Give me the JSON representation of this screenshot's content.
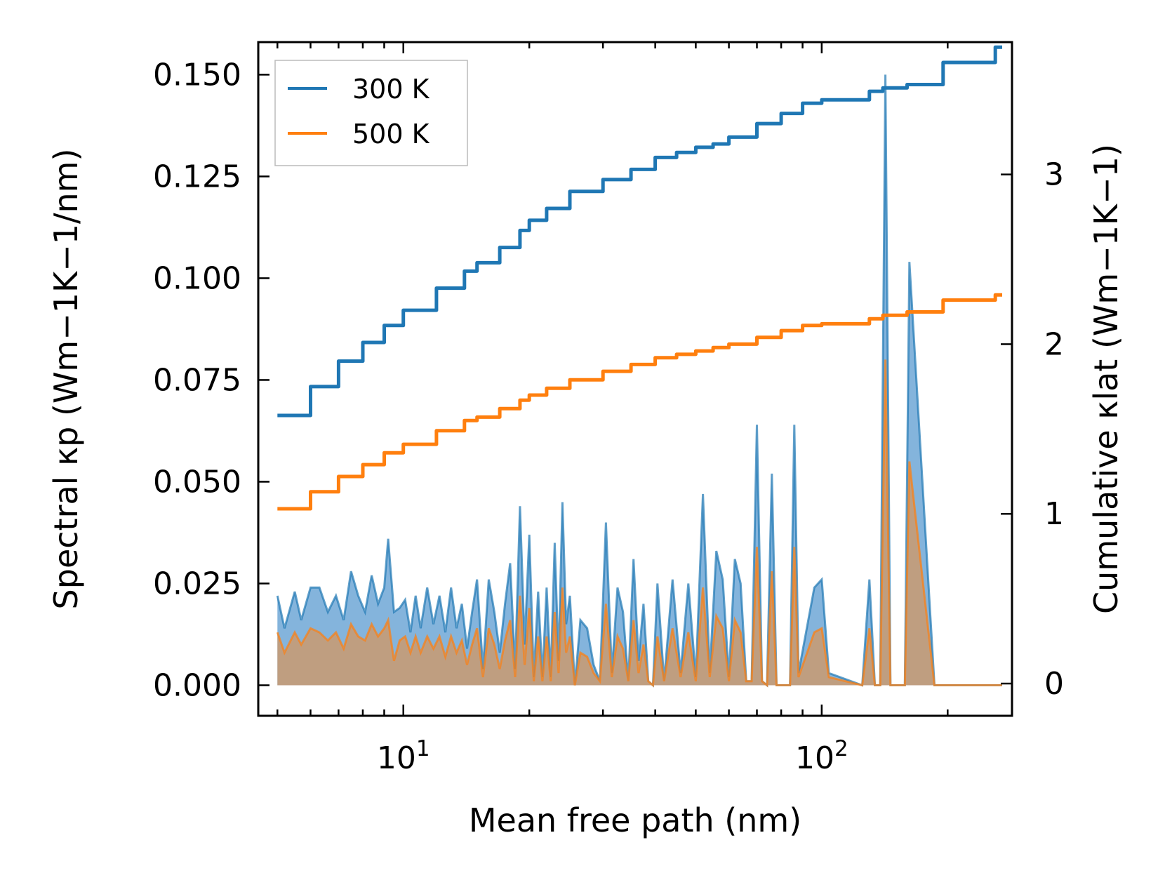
{
  "chart_data": {
    "type": "line",
    "xscale": "log",
    "xlabel": "Mean free path (nm)",
    "ylabel_left": "Spectral κp (Wm−1K−1/nm)",
    "ylabel_right": "Cumulative κlat (Wm−1K−1)",
    "xlim": [
      4.5,
      285
    ],
    "ylim_left": [
      -0.0075,
      0.158
    ],
    "ylim_right": [
      -0.19,
      3.78
    ],
    "x_ticks": [
      {
        "value": 10,
        "base": "10",
        "exp": "1"
      },
      {
        "value": 100,
        "base": "10",
        "exp": "2"
      }
    ],
    "y_ticks_left": [
      "0.000",
      "0.025",
      "0.050",
      "0.075",
      "0.100",
      "0.125",
      "0.150"
    ],
    "y_ticks_right": [
      "0",
      "1",
      "2",
      "3"
    ],
    "legend": [
      "300 K",
      "500 K"
    ],
    "colors": {
      "s300": "#1f77b4",
      "s500": "#ff7f0e",
      "fill300": "#5b9bd0",
      "fill500": "#c99a70"
    },
    "cumulative": [
      {
        "name": "300 K",
        "x": [
          5,
          6,
          7,
          8,
          9,
          10,
          12,
          14,
          15,
          17,
          19,
          20,
          22,
          25,
          30,
          35,
          40,
          45,
          50,
          55,
          60,
          70,
          80,
          90,
          100,
          130,
          140,
          160,
          190,
          195,
          250,
          260,
          270
        ],
        "y": [
          1.58,
          1.75,
          1.9,
          2.01,
          2.11,
          2.2,
          2.33,
          2.43,
          2.48,
          2.57,
          2.67,
          2.73,
          2.8,
          2.9,
          2.97,
          3.03,
          3.1,
          3.13,
          3.16,
          3.18,
          3.22,
          3.3,
          3.36,
          3.42,
          3.44,
          3.49,
          3.51,
          3.53,
          3.53,
          3.66,
          3.66,
          3.75,
          3.75
        ]
      },
      {
        "name": "500 K",
        "x": [
          5,
          6,
          7,
          8,
          9,
          10,
          12,
          14,
          15,
          17,
          19,
          20,
          22,
          25,
          30,
          35,
          40,
          45,
          50,
          55,
          60,
          70,
          80,
          90,
          100,
          130,
          140,
          160,
          190,
          195,
          250,
          260,
          270
        ],
        "y": [
          1.03,
          1.13,
          1.22,
          1.29,
          1.36,
          1.41,
          1.49,
          1.55,
          1.57,
          1.62,
          1.67,
          1.7,
          1.74,
          1.79,
          1.84,
          1.88,
          1.92,
          1.94,
          1.96,
          1.98,
          2.0,
          2.04,
          2.08,
          2.11,
          2.12,
          2.15,
          2.17,
          2.19,
          2.19,
          2.26,
          2.26,
          2.29,
          2.29
        ]
      }
    ],
    "spectral": [
      {
        "name": "300 K",
        "x": [
          5.0,
          5.2,
          5.5,
          5.7,
          6.0,
          6.3,
          6.6,
          6.9,
          7.2,
          7.5,
          7.8,
          8.1,
          8.4,
          8.7,
          9.0,
          9.2,
          9.5,
          9.8,
          10.1,
          10.4,
          10.7,
          11.0,
          11.4,
          11.8,
          12.2,
          12.6,
          13.0,
          13.4,
          13.8,
          14.2,
          14.6,
          15.0,
          15.5,
          16.0,
          16.5,
          17.0,
          17.5,
          18.0,
          18.5,
          19.0,
          19.5,
          20.0,
          20.5,
          21.0,
          21.5,
          22.0,
          22.5,
          23.0,
          23.5,
          24.0,
          24.5,
          25.0,
          25.7,
          26.5,
          27.5,
          28.5,
          29.5,
          30.5,
          31.5,
          32.5,
          33.5,
          34.5,
          35.5,
          36.5,
          37.5,
          38.5,
          39.5,
          40.5,
          42.0,
          44.0,
          46.0,
          48.0,
          50.0,
          52.0,
          54.0,
          56.0,
          58.0,
          60.0,
          62.0,
          64.0,
          66.0,
          68.0,
          70.0,
          72.0,
          74.0,
          76.0,
          78.0,
          80.0,
          84.0,
          86.0,
          88.0,
          96.0,
          100.0,
          104.0,
          125.0,
          130.0,
          134.0,
          138.0,
          142.0,
          146.0,
          154.0,
          158.0,
          162.0,
          186.0,
          190.0,
          194.0,
          252.0,
          256.0,
          260.0,
          270.0
        ],
        "y": [
          0.022,
          0.014,
          0.023,
          0.016,
          0.024,
          0.024,
          0.018,
          0.022,
          0.016,
          0.028,
          0.022,
          0.018,
          0.027,
          0.02,
          0.024,
          0.036,
          0.018,
          0.019,
          0.021,
          0.013,
          0.022,
          0.014,
          0.024,
          0.015,
          0.022,
          0.013,
          0.024,
          0.014,
          0.02,
          0.009,
          0.018,
          0.026,
          0.004,
          0.026,
          0.018,
          0.008,
          0.02,
          0.03,
          0.004,
          0.044,
          0.01,
          0.037,
          0.002,
          0.023,
          0.002,
          0.024,
          0.002,
          0.035,
          0.006,
          0.045,
          0.015,
          0.022,
          0.0,
          0.016,
          0.014,
          0.005,
          0.001,
          0.04,
          0.003,
          0.024,
          0.018,
          0.001,
          0.031,
          0.006,
          0.02,
          0.001,
          0.0,
          0.025,
          0.001,
          0.026,
          0.003,
          0.025,
          0.002,
          0.047,
          0.003,
          0.033,
          0.026,
          0.002,
          0.031,
          0.025,
          0.001,
          0.001,
          0.064,
          0.001,
          0.0,
          0.052,
          0.0,
          0.0,
          0.0,
          0.064,
          0.003,
          0.024,
          0.026,
          0.003,
          0.0,
          0.026,
          0.0,
          0.0,
          0.15,
          0.0,
          0.0,
          0.0,
          0.104,
          0.0,
          0.0,
          0.0,
          0.0,
          0.0,
          0.0,
          0.0
        ]
      },
      {
        "name": "500 K",
        "x": [
          5.0,
          5.2,
          5.5,
          5.7,
          6.0,
          6.3,
          6.6,
          6.9,
          7.2,
          7.5,
          7.8,
          8.1,
          8.4,
          8.7,
          9.0,
          9.2,
          9.5,
          9.8,
          10.1,
          10.4,
          10.7,
          11.0,
          11.4,
          11.8,
          12.2,
          12.6,
          13.0,
          13.4,
          13.8,
          14.2,
          14.6,
          15.0,
          15.5,
          16.0,
          16.5,
          17.0,
          17.5,
          18.0,
          18.5,
          19.0,
          19.5,
          20.0,
          20.5,
          21.0,
          21.5,
          22.0,
          22.5,
          23.0,
          23.5,
          24.0,
          24.5,
          25.0,
          25.7,
          26.5,
          27.5,
          28.5,
          29.5,
          30.5,
          31.5,
          32.5,
          33.5,
          34.5,
          35.5,
          36.5,
          37.5,
          38.5,
          39.5,
          40.5,
          42.0,
          44.0,
          46.0,
          48.0,
          50.0,
          52.0,
          54.0,
          56.0,
          58.0,
          60.0,
          62.0,
          64.0,
          66.0,
          68.0,
          70.0,
          72.0,
          74.0,
          76.0,
          78.0,
          80.0,
          84.0,
          86.0,
          88.0,
          96.0,
          100.0,
          104.0,
          125.0,
          130.0,
          134.0,
          138.0,
          142.0,
          146.0,
          154.0,
          158.0,
          162.0,
          186.0,
          190.0,
          194.0,
          252.0,
          256.0,
          260.0,
          270.0
        ],
        "y": [
          0.013,
          0.008,
          0.013,
          0.01,
          0.014,
          0.013,
          0.011,
          0.013,
          0.009,
          0.015,
          0.012,
          0.011,
          0.015,
          0.012,
          0.014,
          0.016,
          0.006,
          0.011,
          0.012,
          0.008,
          0.012,
          0.008,
          0.012,
          0.009,
          0.012,
          0.007,
          0.012,
          0.008,
          0.011,
          0.005,
          0.01,
          0.014,
          0.002,
          0.014,
          0.01,
          0.004,
          0.011,
          0.016,
          0.002,
          0.022,
          0.005,
          0.019,
          0.001,
          0.012,
          0.001,
          0.012,
          0.001,
          0.018,
          0.003,
          0.024,
          0.008,
          0.012,
          0.0,
          0.008,
          0.007,
          0.003,
          0.001,
          0.02,
          0.002,
          0.012,
          0.009,
          0.001,
          0.016,
          0.003,
          0.01,
          0.001,
          0.0,
          0.012,
          0.001,
          0.014,
          0.002,
          0.013,
          0.001,
          0.024,
          0.002,
          0.017,
          0.014,
          0.001,
          0.016,
          0.013,
          0.001,
          0.001,
          0.034,
          0.001,
          0.0,
          0.028,
          0.0,
          0.0,
          0.0,
          0.034,
          0.002,
          0.013,
          0.014,
          0.002,
          0.0,
          0.014,
          0.0,
          0.0,
          0.08,
          0.0,
          0.0,
          0.0,
          0.055,
          0.0,
          0.0,
          0.0,
          0.0,
          0.0,
          0.0,
          0.0
        ]
      }
    ]
  }
}
